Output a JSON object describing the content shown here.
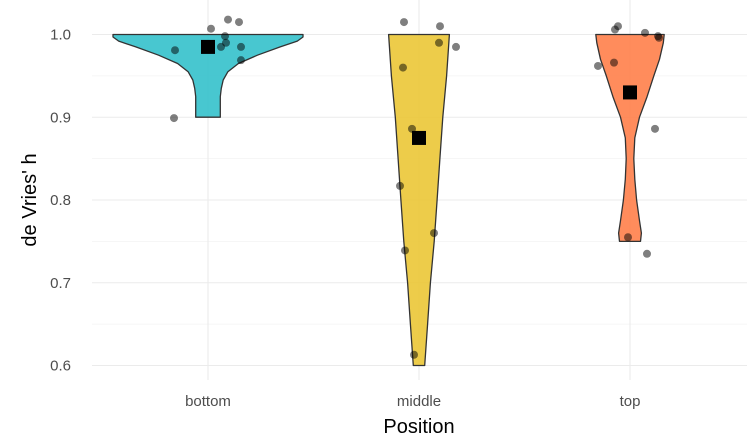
{
  "chart_data": {
    "type": "violin",
    "xlabel": "Position",
    "ylabel": "de Vries' h",
    "ylim": [
      0.6,
      1.0
    ],
    "yticks": [
      "0.6",
      "0.7",
      "0.8",
      "0.9",
      "1.0"
    ],
    "grid": true,
    "legend": "none",
    "categories": [
      "bottom",
      "middle",
      "top"
    ],
    "groups": [
      {
        "category": "bottom",
        "color": "#2fbfc9",
        "mean": 0.985,
        "points": [
          {
            "x": 0.2,
            "y": 1.018
          },
          {
            "x": 0.31,
            "y": 1.015
          },
          {
            "x": 0.03,
            "y": 1.007
          },
          {
            "x": 0.17,
            "y": 0.998
          },
          {
            "x": 0.18,
            "y": 0.99
          },
          {
            "x": 0.13,
            "y": 0.985
          },
          {
            "x": 0.33,
            "y": 0.985
          },
          {
            "x": -0.33,
            "y": 0.981
          },
          {
            "x": 0.33,
            "y": 0.969
          },
          {
            "x": -0.34,
            "y": 0.899
          }
        ],
        "density": [
          {
            "y": 0.9,
            "w": 0.13
          },
          {
            "y": 0.925,
            "w": 0.13
          },
          {
            "y": 0.935,
            "w": 0.14
          },
          {
            "y": 0.945,
            "w": 0.16
          },
          {
            "y": 0.955,
            "w": 0.21
          },
          {
            "y": 0.965,
            "w": 0.32
          },
          {
            "y": 0.975,
            "w": 0.52
          },
          {
            "y": 0.985,
            "w": 0.76
          },
          {
            "y": 0.992,
            "w": 0.94
          },
          {
            "y": 0.997,
            "w": 1.0
          },
          {
            "y": 1.0,
            "w": 1.0
          }
        ]
      },
      {
        "category": "middle",
        "color": "#ebc531",
        "mean": 0.875,
        "points": [
          {
            "x": -0.15,
            "y": 1.015
          },
          {
            "x": 0.21,
            "y": 1.01
          },
          {
            "x": 0.2,
            "y": 0.99
          },
          {
            "x": 0.37,
            "y": 0.985
          },
          {
            "x": -0.16,
            "y": 0.96
          },
          {
            "x": -0.07,
            "y": 0.886
          },
          {
            "x": -0.19,
            "y": 0.817
          },
          {
            "x": 0.15,
            "y": 0.76
          },
          {
            "x": -0.14,
            "y": 0.739
          },
          {
            "x": -0.05,
            "y": 0.613
          }
        ],
        "density": [
          {
            "y": 0.6,
            "w": 0.06
          },
          {
            "y": 0.65,
            "w": 0.09
          },
          {
            "y": 0.7,
            "w": 0.12
          },
          {
            "y": 0.75,
            "w": 0.16
          },
          {
            "y": 0.8,
            "w": 0.19
          },
          {
            "y": 0.85,
            "w": 0.22
          },
          {
            "y": 0.9,
            "w": 0.25
          },
          {
            "y": 0.95,
            "w": 0.29
          },
          {
            "y": 1.0,
            "w": 0.32
          }
        ]
      },
      {
        "category": "top",
        "color": "#ff7c45",
        "mean": 0.93,
        "points": [
          {
            "x": -0.12,
            "y": 1.01
          },
          {
            "x": -0.15,
            "y": 1.006
          },
          {
            "x": 0.15,
            "y": 1.002
          },
          {
            "x": 0.28,
            "y": 0.998
          },
          {
            "x": 0.29,
            "y": 0.996
          },
          {
            "x": -0.16,
            "y": 0.966
          },
          {
            "x": -0.32,
            "y": 0.962
          },
          {
            "x": 0.25,
            "y": 0.886
          },
          {
            "x": -0.02,
            "y": 0.755
          },
          {
            "x": 0.17,
            "y": 0.735
          }
        ],
        "density": [
          {
            "y": 0.75,
            "w": 0.11
          },
          {
            "y": 0.76,
            "w": 0.12
          },
          {
            "y": 0.775,
            "w": 0.1
          },
          {
            "y": 0.8,
            "w": 0.07
          },
          {
            "y": 0.825,
            "w": 0.05
          },
          {
            "y": 0.85,
            "w": 0.04
          },
          {
            "y": 0.875,
            "w": 0.05
          },
          {
            "y": 0.9,
            "w": 0.1
          },
          {
            "y": 0.925,
            "w": 0.18
          },
          {
            "y": 0.95,
            "w": 0.25
          },
          {
            "y": 0.97,
            "w": 0.31
          },
          {
            "y": 0.99,
            "w": 0.35
          },
          {
            "y": 1.0,
            "w": 0.36
          }
        ]
      }
    ]
  }
}
